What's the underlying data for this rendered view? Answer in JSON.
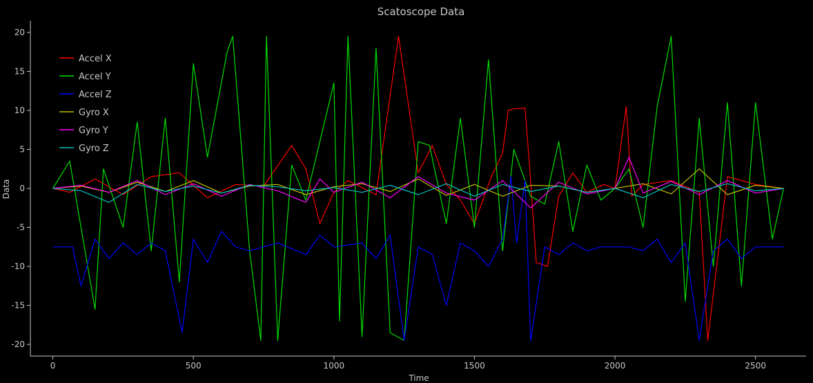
{
  "chart_data": {
    "type": "line",
    "title": "Scatoscope Data",
    "xlabel": "Time",
    "ylabel": "Data",
    "xlim": [
      -80,
      2680
    ],
    "ylim": [
      -21.5,
      21.5
    ],
    "xticks": [
      0,
      500,
      1000,
      1500,
      2000,
      2500
    ],
    "yticks": [
      -20,
      -15,
      -10,
      -5,
      0,
      5,
      10,
      15,
      20
    ],
    "legend_position": "top-left",
    "grid": false,
    "colors": {
      "background": "#000000",
      "axis": "#c8c8c8",
      "text": "#c8c8c8"
    },
    "series": [
      {
        "name": "Accel X",
        "color": "#ff0000",
        "x": [
          0,
          60,
          150,
          250,
          350,
          450,
          550,
          650,
          750,
          850,
          900,
          950,
          1000,
          1050,
          1150,
          1230,
          1300,
          1350,
          1400,
          1450,
          1500,
          1560,
          1600,
          1620,
          1640,
          1680,
          1700,
          1720,
          1760,
          1800,
          1850,
          1900,
          1960,
          2000,
          2040,
          2060,
          2100,
          2200,
          2300,
          2330,
          2400,
          2500,
          2600
        ],
        "y": [
          0,
          -0.5,
          1.2,
          -0.8,
          1.5,
          2.0,
          -1.2,
          0.5,
          0.3,
          5.5,
          2.5,
          -4.5,
          -0.5,
          1.0,
          -0.8,
          19.5,
          2.0,
          5.5,
          0.5,
          -1.5,
          -4.5,
          1.5,
          4.5,
          10.0,
          10.2,
          10.3,
          1.0,
          -9.5,
          -10.0,
          -1.0,
          2.0,
          -0.5,
          0.5,
          0,
          10.5,
          -1.0,
          0.5,
          1.0,
          -0.5,
          -19.5,
          1.5,
          0.5,
          0
        ]
      },
      {
        "name": "Accel Y",
        "color": "#00e000",
        "x": [
          0,
          60,
          150,
          180,
          250,
          300,
          350,
          400,
          450,
          500,
          550,
          620,
          640,
          700,
          740,
          760,
          800,
          850,
          900,
          1000,
          1020,
          1050,
          1100,
          1150,
          1200,
          1250,
          1300,
          1340,
          1400,
          1450,
          1500,
          1550,
          1600,
          1640,
          1700,
          1750,
          1800,
          1850,
          1900,
          1950,
          2000,
          2050,
          2100,
          2150,
          2200,
          2250,
          2300,
          2350,
          2400,
          2450,
          2500,
          2560,
          2600
        ],
        "y": [
          0,
          3.5,
          -15.5,
          2.5,
          -5.0,
          8.5,
          -8.0,
          9.0,
          -12.0,
          16.0,
          4.0,
          17.5,
          19.5,
          -8.0,
          -19.5,
          19.5,
          -19.5,
          3.0,
          -1.5,
          13.5,
          -17.0,
          19.5,
          -19.0,
          18.0,
          -18.5,
          -19.5,
          6.0,
          5.5,
          -4.5,
          9.0,
          -5.0,
          16.5,
          -8.0,
          5.0,
          -1.0,
          -2.0,
          6.0,
          -5.5,
          3.0,
          -1.5,
          0,
          2.5,
          -5.0,
          10.5,
          19.5,
          -14.5,
          9.0,
          -10.0,
          11.0,
          -12.5,
          11.0,
          -6.5,
          0
        ]
      },
      {
        "name": "Accel Z",
        "color": "#0000ff",
        "x": [
          0,
          70,
          100,
          150,
          200,
          250,
          300,
          350,
          400,
          460,
          500,
          550,
          600,
          650,
          700,
          800,
          900,
          950,
          1000,
          1100,
          1150,
          1200,
          1250,
          1300,
          1350,
          1400,
          1450,
          1500,
          1550,
          1600,
          1630,
          1650,
          1680,
          1700,
          1750,
          1800,
          1850,
          1900,
          1950,
          2000,
          2050,
          2100,
          2150,
          2200,
          2250,
          2300,
          2350,
          2400,
          2450,
          2500,
          2550,
          2600
        ],
        "y": [
          -7.5,
          -7.5,
          -12.5,
          -6.5,
          -9.0,
          -7.0,
          -8.5,
          -7.0,
          -8.0,
          -18.5,
          -6.5,
          -9.5,
          -5.5,
          -7.5,
          -8.0,
          -7.0,
          -8.5,
          -6.0,
          -7.5,
          -7.0,
          -9.0,
          -6.0,
          -19.5,
          -7.5,
          -8.5,
          -15.0,
          -7.0,
          -8.0,
          -10.0,
          -6.5,
          1.5,
          -7.0,
          1.0,
          -19.5,
          -7.5,
          -8.5,
          -7.0,
          -8.0,
          -7.5,
          -7.5,
          -7.5,
          -8.0,
          -6.5,
          -9.5,
          -7.0,
          -19.5,
          -8.0,
          -6.5,
          -9.0,
          -7.5,
          -7.5,
          -7.5
        ]
      },
      {
        "name": "Gyro X",
        "color": "#c0c000",
        "x": [
          0,
          100,
          200,
          300,
          400,
          500,
          600,
          700,
          800,
          900,
          1000,
          1100,
          1200,
          1300,
          1400,
          1500,
          1600,
          1700,
          1800,
          1900,
          2000,
          2100,
          2200,
          2300,
          2400,
          2500,
          2600
        ],
        "y": [
          0,
          0.3,
          -0.5,
          0.8,
          -0.4,
          1.0,
          -0.6,
          0.3,
          0.5,
          -0.8,
          0.2,
          0.6,
          -0.4,
          1.2,
          -0.9,
          0.5,
          -1.0,
          0.4,
          0.3,
          -0.5,
          0,
          0.6,
          -0.7,
          2.5,
          -0.8,
          0.4,
          0
        ]
      },
      {
        "name": "Gyro Y",
        "color": "#ff00ff",
        "x": [
          0,
          100,
          200,
          300,
          400,
          500,
          600,
          700,
          800,
          900,
          950,
          1000,
          1100,
          1200,
          1300,
          1400,
          1500,
          1600,
          1700,
          1800,
          1900,
          2000,
          2050,
          2100,
          2200,
          2300,
          2400,
          2500,
          2600
        ],
        "y": [
          0,
          0.4,
          -0.5,
          1.0,
          -0.8,
          0.6,
          -1.0,
          0.5,
          -0.3,
          -1.8,
          1.2,
          -0.5,
          0.8,
          -1.2,
          1.5,
          -0.6,
          -1.5,
          1.0,
          -2.5,
          0.8,
          -0.7,
          0,
          4.0,
          -0.6,
          0.9,
          -0.8,
          1.0,
          -0.6,
          0
        ]
      },
      {
        "name": "Gyro Z",
        "color": "#00c0c0",
        "x": [
          0,
          100,
          200,
          300,
          400,
          500,
          600,
          700,
          800,
          900,
          1000,
          1100,
          1200,
          1300,
          1400,
          1500,
          1600,
          1700,
          1800,
          1900,
          2000,
          2100,
          2200,
          2300,
          2400,
          2500,
          2600
        ],
        "y": [
          0,
          -0.3,
          -1.8,
          0.5,
          -0.4,
          0.3,
          -0.6,
          0.4,
          0.2,
          -0.3,
          0.1,
          -0.5,
          0.4,
          -0.8,
          0.6,
          -1.0,
          0.5,
          -0.4,
          0.3,
          -0.5,
          0,
          -1.2,
          0.5,
          -0.4,
          0.6,
          -0.3,
          0
        ]
      }
    ]
  }
}
